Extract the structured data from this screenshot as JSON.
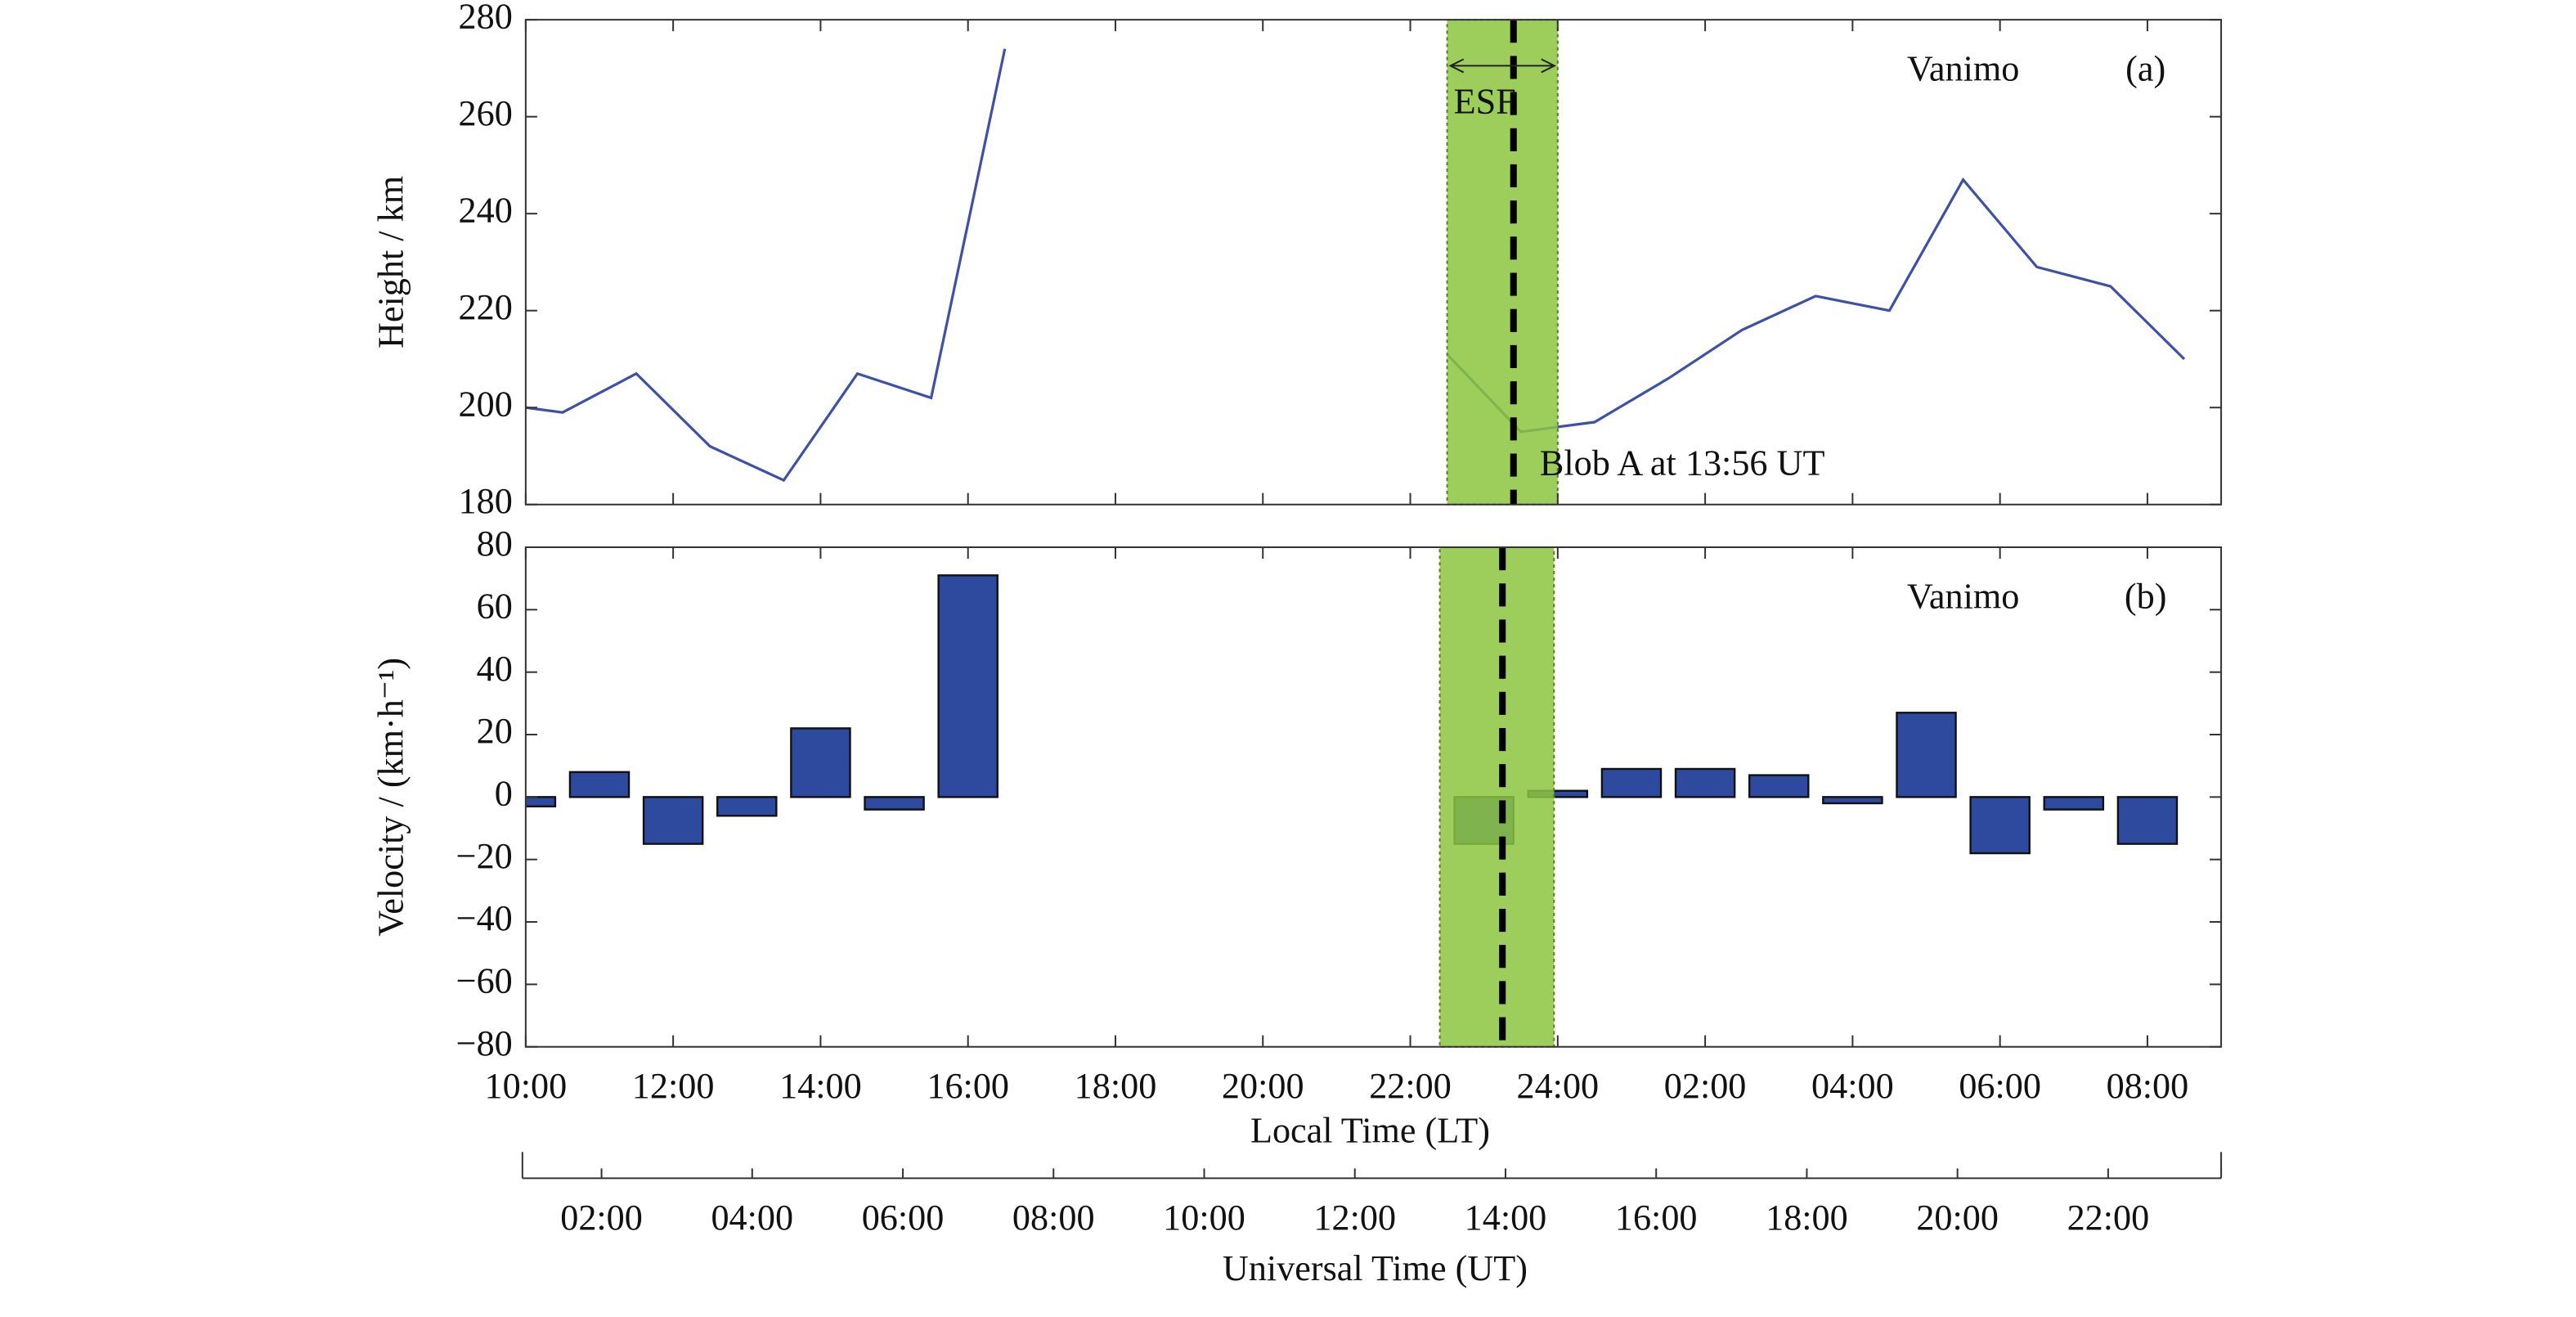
{
  "chart_data": [
    {
      "type": "line",
      "ylabel": "Height / km",
      "x": [
        10,
        10.5,
        11.5,
        12.5,
        13.5,
        14.5,
        15.5,
        16.5,
        17.5,
        22.5,
        23.5,
        24.5,
        25.5,
        26.5,
        27.5,
        28.5,
        29.5,
        30.5,
        31.5,
        32.5
      ],
      "values": [
        200,
        199,
        207,
        192,
        185,
        207,
        202,
        274,
        null,
        211,
        195,
        197,
        206,
        216,
        223,
        220,
        247,
        229,
        225,
        210
      ],
      "color": "#3f51a3",
      "xlim": [
        10,
        33
      ],
      "xticks": [
        10,
        12,
        14,
        16,
        18,
        20,
        22,
        24,
        26,
        28,
        30,
        32
      ],
      "ylim": [
        180,
        280
      ],
      "yticks": [
        180,
        200,
        220,
        240,
        260,
        280
      ],
      "esf_span": [
        22.5,
        24.0
      ],
      "esf_color": "#8cc63f",
      "blob_x": 23.4,
      "esf_label": "ESF",
      "blob_label": "Blob A at 13:56 UT",
      "station": "Vanimo",
      "panel": "(a)"
    },
    {
      "type": "bar",
      "ylabel": "Velocity / (km·h⁻¹)",
      "xlabel": "Local Time (LT)",
      "x": [
        10,
        11,
        12,
        13,
        14,
        15,
        16,
        17,
        18,
        19,
        20,
        21,
        22,
        23,
        24,
        25,
        26,
        27,
        28,
        29,
        30,
        31,
        32
      ],
      "values": [
        -3,
        8,
        -15,
        -6,
        22,
        -4,
        71,
        0,
        0,
        0,
        0,
        0,
        0,
        -15,
        2,
        9,
        9,
        7,
        -2,
        27,
        -18,
        -4,
        -15
      ],
      "color": "#2e4a9e",
      "xlim": [
        10,
        33
      ],
      "xticks": [
        {
          "value": 10,
          "label": "10:00"
        },
        {
          "value": 12,
          "label": "12:00"
        },
        {
          "value": 14,
          "label": "14:00"
        },
        {
          "value": 16,
          "label": "16:00"
        },
        {
          "value": 18,
          "label": "18:00"
        },
        {
          "value": 20,
          "label": "20:00"
        },
        {
          "value": 22,
          "label": "22:00"
        },
        {
          "value": 24,
          "label": "24:00"
        },
        {
          "value": 26,
          "label": "02:00"
        },
        {
          "value": 28,
          "label": "04:00"
        },
        {
          "value": 30,
          "label": "06:00"
        },
        {
          "value": 32,
          "label": "08:00"
        }
      ],
      "ylim": [
        -80,
        80
      ],
      "yticks": [
        {
          "value": -80,
          "label": "−80"
        },
        {
          "value": -60,
          "label": "−60"
        },
        {
          "value": -40,
          "label": "−40"
        },
        {
          "value": -20,
          "label": "−20"
        },
        0,
        20,
        40,
        60,
        80
      ],
      "esf_span": [
        22.4,
        23.95
      ],
      "esf_color": "#8cc63f",
      "blob_x": 23.25,
      "station": "Vanimo",
      "panel": "(b)",
      "x2label": "Universal Time (UT)",
      "x2lim": [
        0.95,
        23.5
      ],
      "x2ticks": [
        {
          "value": 2,
          "label": "02:00"
        },
        {
          "value": 4,
          "label": "04:00"
        },
        {
          "value": 6,
          "label": "06:00"
        },
        {
          "value": 8,
          "label": "08:00"
        },
        {
          "value": 10,
          "label": "10:00"
        },
        {
          "value": 12,
          "label": "12:00"
        },
        {
          "value": 14,
          "label": "14:00"
        },
        {
          "value": 16,
          "label": "16:00"
        },
        {
          "value": 18,
          "label": "18:00"
        },
        {
          "value": 20,
          "label": "20:00"
        },
        {
          "value": 22,
          "label": "22:00"
        }
      ]
    }
  ]
}
